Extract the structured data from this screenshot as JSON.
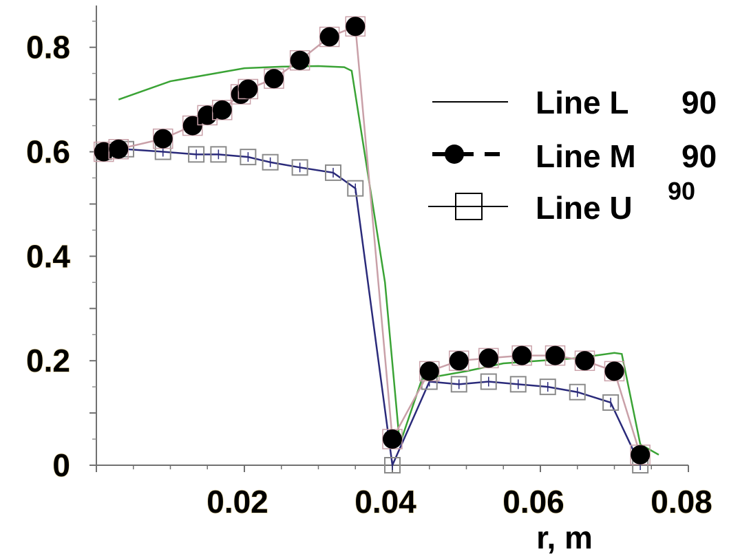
{
  "chart_data": {
    "type": "line",
    "xlabel": "r, m",
    "ylabel": "",
    "xlim": [
      0,
      0.08
    ],
    "ylim": [
      0,
      0.88
    ],
    "x_ticks": [
      "0.02",
      "0.04",
      "0.06",
      "0.08"
    ],
    "y_ticks": [
      "0",
      "0.2",
      "0.4",
      "0.6",
      "0.8"
    ],
    "legend_position": "top-right",
    "series": [
      {
        "name": "Line L",
        "superscript": "90",
        "marker": "none",
        "color": "#3aa335",
        "x": [
          0.003,
          0.01,
          0.02,
          0.025,
          0.03,
          0.0335,
          0.0345,
          0.036,
          0.039,
          0.041,
          0.044,
          0.05,
          0.055,
          0.06,
          0.065,
          0.07,
          0.071,
          0.0735,
          0.076
        ],
        "y": [
          0.7,
          0.735,
          0.76,
          0.763,
          0.764,
          0.762,
          0.755,
          0.62,
          0.35,
          0.04,
          0.165,
          0.18,
          0.195,
          0.2,
          0.205,
          0.215,
          0.213,
          0.04,
          0.02
        ]
      },
      {
        "name": "Line M",
        "superscript": "90",
        "marker": "circle",
        "color": "#c9a0a8",
        "x": [
          0.001,
          0.003,
          0.009,
          0.013,
          0.015,
          0.017,
          0.0195,
          0.0205,
          0.024,
          0.0275,
          0.0315,
          0.035,
          0.04,
          0.045,
          0.049,
          0.053,
          0.0575,
          0.062,
          0.066,
          0.07,
          0.0735
        ],
        "y": [
          0.6,
          0.605,
          0.625,
          0.65,
          0.67,
          0.68,
          0.71,
          0.72,
          0.74,
          0.775,
          0.82,
          0.84,
          0.05,
          0.18,
          0.2,
          0.205,
          0.21,
          0.21,
          0.2,
          0.18,
          0.02
        ]
      },
      {
        "name": "Line U",
        "superscript": "90",
        "marker": "square",
        "color": "#2a2a7a",
        "x": [
          0.001,
          0.004,
          0.009,
          0.0135,
          0.0165,
          0.0205,
          0.0235,
          0.0275,
          0.032,
          0.035,
          0.04,
          0.045,
          0.049,
          0.053,
          0.057,
          0.061,
          0.065,
          0.0695,
          0.0735
        ],
        "y": [
          0.6,
          0.605,
          0.6,
          0.595,
          0.595,
          0.59,
          0.58,
          0.57,
          0.56,
          0.53,
          0.0,
          0.16,
          0.155,
          0.16,
          0.155,
          0.15,
          0.14,
          0.12,
          0.0
        ]
      }
    ]
  }
}
